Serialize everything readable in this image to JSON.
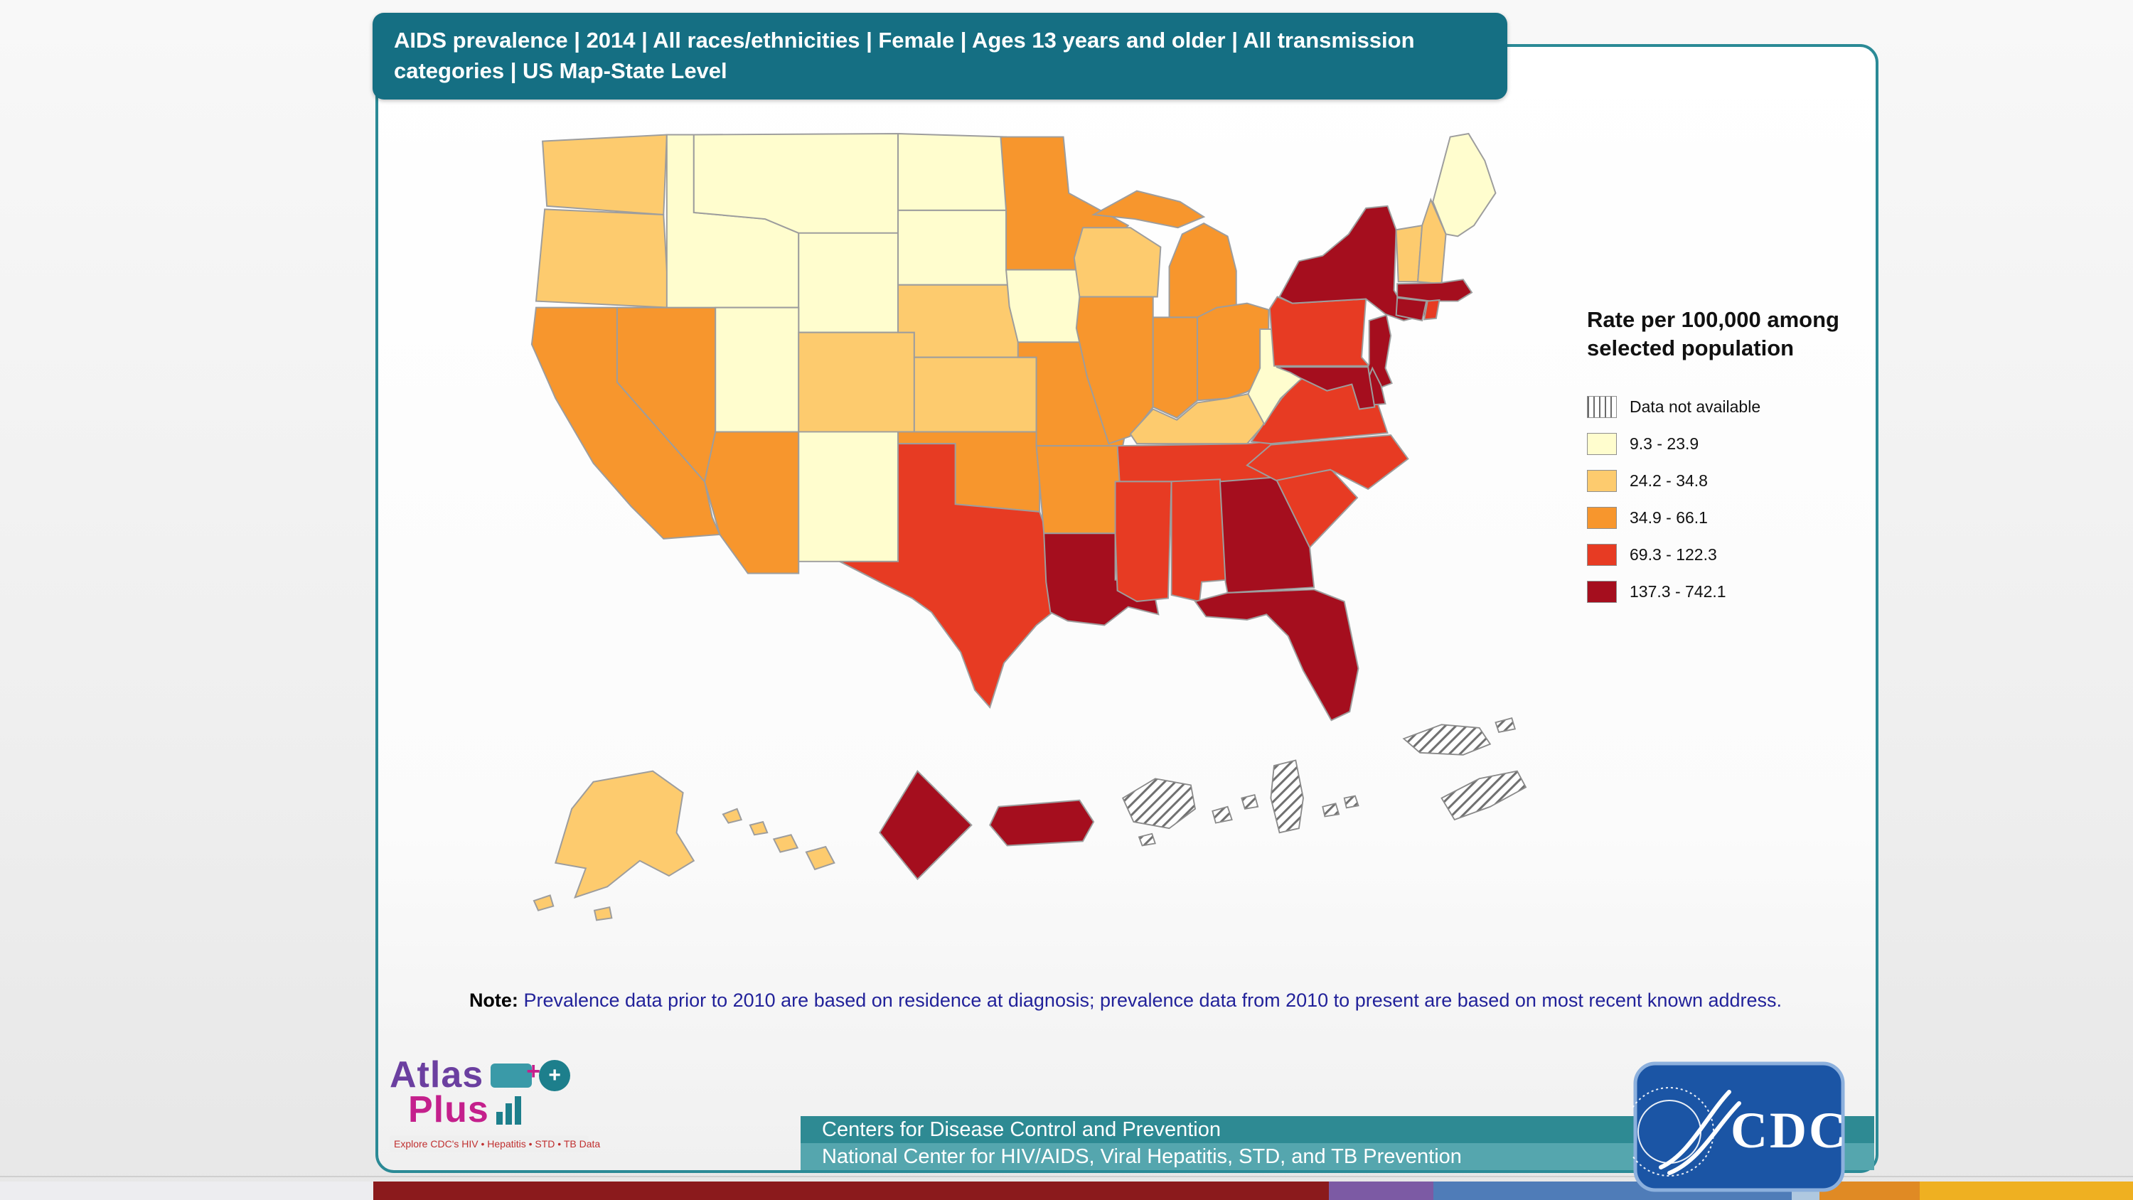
{
  "header": {
    "title": "AIDS prevalence | 2014 | All races/ethnicities | Female | Ages 13 years and older | All transmission categories | US Map-State Level"
  },
  "legend": {
    "title": "Rate per 100,000 among selected population"
  },
  "note": {
    "label": "Note:",
    "text": " Prevalence data prior to 2010 are based on residence at diagnosis; prevalence data from 2010 to present are based  on most recent known address."
  },
  "footer": {
    "line1": "Centers for Disease Control and Prevention",
    "line2": "National Center for HIV/AIDS, Viral Hepatitis, STD, and TB Prevention",
    "color_strip": [
      {
        "color": "#ededf0",
        "width_pct": 17.5
      },
      {
        "color": "#8b1a1c",
        "width_pct": 44.8
      },
      {
        "color": "#7c5aa4",
        "width_pct": 4.9
      },
      {
        "color": "#4f7cb8",
        "width_pct": 16.8
      },
      {
        "color": "#afc8e0",
        "width_pct": 1.3
      },
      {
        "color": "#e08a24",
        "width_pct": 4.7
      },
      {
        "color": "#efb021",
        "width_pct": 10.0
      }
    ]
  },
  "logos": {
    "atlas_word1": "Atlas",
    "atlas_word2": "Plus",
    "atlas_globe": "+",
    "atlas_tagline": "Explore CDC's HIV • Hepatitis • STD • TB Data",
    "cdc_text": "CDC"
  },
  "chart_data": {
    "type": "choropleth",
    "title": "AIDS prevalence | 2014 | All races/ethnicities | Female | Ages 13 years and older | All transmission categories | US Map-State Level",
    "legend_title": "Rate per 100,000 among selected population",
    "unit": "rate per 100,000",
    "classes": [
      {
        "label": "Data not available",
        "color": "hatched"
      },
      {
        "label": "9.3 - 23.9",
        "color": "#fffdce"
      },
      {
        "label": "24.2 - 34.8",
        "color": "#fdcb6e"
      },
      {
        "label": "34.9 - 66.1",
        "color": "#f7962d"
      },
      {
        "label": "69.3 - 122.3",
        "color": "#e73b23"
      },
      {
        "label": "137.3 - 742.1",
        "color": "#a50e1e"
      }
    ],
    "state_key": "USPS state/territory codes",
    "states": {
      "WA": "24.2 - 34.8",
      "OR": "24.2 - 34.8",
      "CA": "34.9 - 66.1",
      "NV": "34.9 - 66.1",
      "ID": "9.3 - 23.9",
      "MT": "9.3 - 23.9",
      "WY": "9.3 - 23.9",
      "UT": "9.3 - 23.9",
      "CO": "24.2 - 34.8",
      "AZ": "34.9 - 66.1",
      "NM": "9.3 - 23.9",
      "ND": "9.3 - 23.9",
      "SD": "9.3 - 23.9",
      "NE": "24.2 - 34.8",
      "KS": "24.2 - 34.8",
      "OK": "34.9 - 66.1",
      "TX": "69.3 - 122.3",
      "MN": "34.9 - 66.1",
      "IA": "9.3 - 23.9",
      "MO": "34.9 - 66.1",
      "AR": "34.9 - 66.1",
      "LA": "137.3 - 742.1",
      "WI": "24.2 - 34.8",
      "IL": "34.9 - 66.1",
      "MI": "34.9 - 66.1",
      "IN": "34.9 - 66.1",
      "OH": "34.9 - 66.1",
      "KY": "24.2 - 34.8",
      "TN": "69.3 - 122.3",
      "MS": "69.3 - 122.3",
      "AL": "69.3 - 122.3",
      "GA": "137.3 - 742.1",
      "FL": "137.3 - 742.1",
      "SC": "69.3 - 122.3",
      "NC": "69.3 - 122.3",
      "VA": "69.3 - 122.3",
      "WV": "9.3 - 23.9",
      "PA": "69.3 - 122.3",
      "NY": "137.3 - 742.1",
      "NJ": "137.3 - 742.1",
      "DE": "137.3 - 742.1",
      "MD": "137.3 - 742.1",
      "DC": "137.3 - 742.1",
      "VT": "24.2 - 34.8",
      "NH": "24.2 - 34.8",
      "ME": "9.3 - 23.9",
      "MA": "137.3 - 742.1",
      "CT": "137.3 - 742.1",
      "RI": "69.3 - 122.3",
      "AK": "24.2 - 34.8",
      "HI": "24.2 - 34.8",
      "PR": "137.3 - 742.1",
      "VI": "Data not available",
      "GU": "Data not available",
      "AS": "Data not available",
      "MP": "Data not available",
      "MH": "Data not available",
      "FM": "Data not available"
    }
  }
}
